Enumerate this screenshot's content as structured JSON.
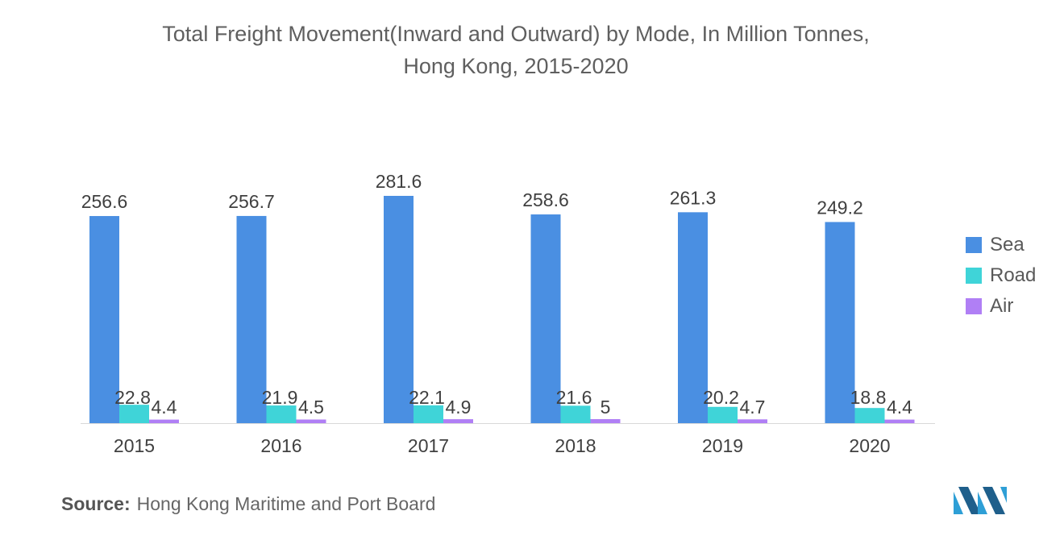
{
  "chart_data": {
    "type": "bar",
    "title": "Total Freight Movement(Inward and Outward) by Mode, In Million Tonnes, Hong Kong, 2015-2020",
    "title_lines": [
      "Total Freight Movement(Inward and Outward) by Mode, In Million Tonnes,",
      "Hong Kong, 2015-2020"
    ],
    "categories": [
      "2015",
      "2016",
      "2017",
      "2018",
      "2019",
      "2020"
    ],
    "series": [
      {
        "name": "Sea",
        "color": "#4a8fe2",
        "values": [
          256.6,
          256.7,
          281.6,
          258.6,
          261.3,
          249.2
        ]
      },
      {
        "name": "Road",
        "color": "#3fd4d8",
        "values": [
          22.8,
          21.9,
          22.1,
          21.6,
          20.2,
          18.8
        ]
      },
      {
        "name": "Air",
        "color": "#b07ff5",
        "values": [
          4.4,
          4.5,
          4.9,
          5,
          4.7,
          4.4
        ]
      }
    ],
    "ylim": [
      0,
      281.6
    ],
    "xlabel": "",
    "ylabel": "",
    "grid": false,
    "legend": "right"
  },
  "source": {
    "label": "Source:",
    "text": "Hong Kong Maritime and Port Board"
  },
  "logo": {
    "icon": "mordor-intelligence-logo"
  }
}
